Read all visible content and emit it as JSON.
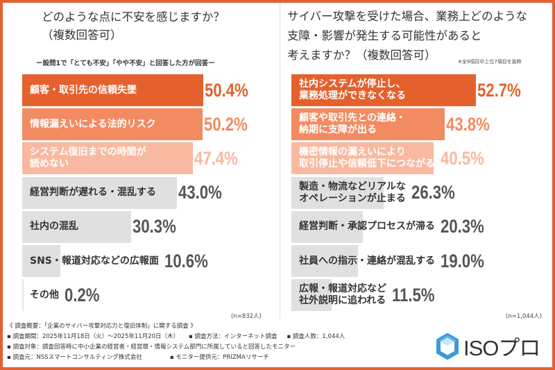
{
  "chart_data": [
    {
      "type": "bar",
      "orientation": "horizontal",
      "title": "どのような点に不安を感じますか？\n（複数回答可）",
      "subtitle": "ー設問1で「とても不安」「やや不安」と回答した方が回答ー",
      "categories": [
        "顧客・取引先の信頼失墜",
        "情報漏えいによる法的リスク",
        "システム復旧までの時間が\n読めない",
        "経営判断が遅れる・混乱する",
        "社内の混乱",
        "SNS・報道対応などの広報面",
        "その他"
      ],
      "values": [
        50.4,
        50.2,
        47.4,
        43.0,
        30.3,
        10.6,
        0.2
      ],
      "value_labels": [
        "50.4%",
        "50.2%",
        "47.4%",
        "43.0%",
        "30.3%",
        "10.6%",
        "0.2%"
      ],
      "colors": [
        "#e4612e",
        "#f28b62",
        "#f9b9a0",
        "#e0e0e0",
        "#e0e0e0",
        "#e0e0e0",
        "#e0e0e0"
      ],
      "pct_colors": [
        "#e4612e",
        "#f28b62",
        "#f9b9a0",
        "#555555",
        "#555555",
        "#555555",
        "#555555"
      ],
      "label_colors": [
        "#ffffff",
        "#ffffff",
        "#ffffff",
        "#333333",
        "#333333",
        "#333333",
        "#333333"
      ],
      "sample": "(n=832人)"
    },
    {
      "type": "bar",
      "orientation": "horizontal",
      "title": "サイバー攻撃を受けた場合、業務上どのような\n支障・影響が発生する可能性があると\n考えますか？（複数回答可）",
      "note": "※全9項目中上位7項目を抜粋",
      "categories": [
        "社内システムが停止し、\n業務処理ができなくなる",
        "顧客や取引先との連絡・\n納期に支障が出る",
        "機密情報の漏えいにより\n取引停止や信頼低下につながる",
        "製造・物流などリアルな\nオペレーションが止まる",
        "経営判断・承認プロセスが滞る",
        "社員への指示・連絡が混乱する",
        "広報・報道対応など\n社外説明に追われる"
      ],
      "values": [
        52.7,
        43.8,
        40.5,
        26.3,
        20.3,
        19.0,
        11.5
      ],
      "value_labels": [
        "52.7%",
        "43.8%",
        "40.5%",
        "26.3%",
        "20.3%",
        "19.0%",
        "11.5%"
      ],
      "colors": [
        "#e4612e",
        "#f28b62",
        "#f9b9a0",
        "#e0e0e0",
        "#e0e0e0",
        "#e0e0e0",
        "#e0e0e0"
      ],
      "pct_colors": [
        "#e4612e",
        "#f28b62",
        "#f9b9a0",
        "#555555",
        "#555555",
        "#555555",
        "#555555"
      ],
      "label_colors": [
        "#ffffff",
        "#ffffff",
        "#ffffff",
        "#333333",
        "#333333",
        "#333333",
        "#333333"
      ],
      "sample": "(n=1,044人)"
    }
  ],
  "footer": {
    "overview": "《 調査概要：「企業のサイバー攻撃対応力と復旧体制」に関する調査 》",
    "period": "▪ 調査期間：2025年11月18日（火）～2025年11月20日（木）",
    "method": "▪ 調査方法：インターネット調査",
    "count": "▪ 調査人数：1,044人",
    "target": "▪ 調査対象：調査回答時に中小企業の経営者・経営層・情報システム部門に所属していると回答したモニター",
    "source": "▪ 調査元：NSSスマートコンサルティング株式会社",
    "monitor": "▪ モニター提供元：PRIZMAリサーチ"
  },
  "logo": {
    "text": "ISOプロ",
    "color": "#3a9ad9"
  },
  "frame_color": "#e4612e"
}
